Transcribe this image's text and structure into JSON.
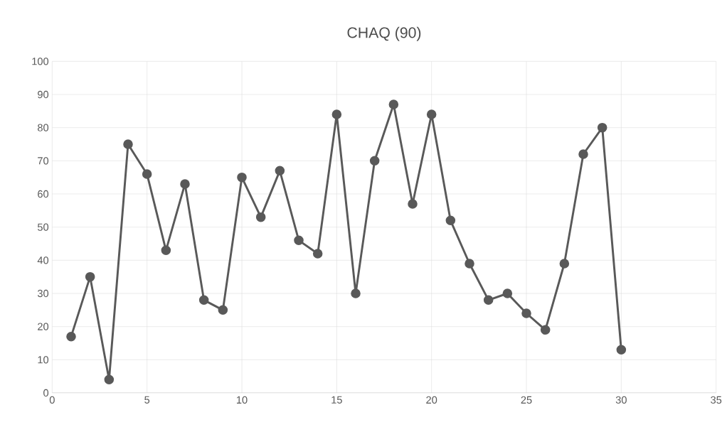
{
  "chart_data": {
    "type": "line",
    "title": "CHAQ (90)",
    "x": [
      1,
      2,
      3,
      4,
      5,
      6,
      7,
      8,
      9,
      10,
      11,
      12,
      13,
      14,
      15,
      16,
      17,
      18,
      19,
      20,
      21,
      22,
      23,
      24,
      25,
      26,
      27,
      28,
      29,
      30
    ],
    "series": [
      {
        "color": "#595959",
        "values": [
          17,
          35,
          4,
          75,
          66,
          43,
          63,
          28,
          25,
          65,
          53,
          67,
          46,
          42,
          84,
          30,
          70,
          87,
          57,
          84,
          52,
          39,
          28,
          30,
          24,
          19,
          39,
          72,
          80,
          13
        ]
      }
    ],
    "xlim": [
      0,
      35
    ],
    "xticks": [
      0,
      5,
      10,
      15,
      20,
      25,
      30,
      35
    ],
    "ylim": [
      0,
      100
    ],
    "yticks": [
      0,
      10,
      20,
      30,
      40,
      50,
      60,
      70,
      80,
      90,
      100
    ],
    "grid": true,
    "marker": "circle",
    "line_style": "solid"
  }
}
